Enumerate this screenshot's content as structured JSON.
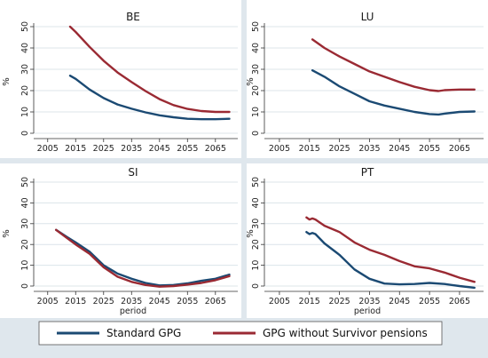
{
  "colors": {
    "background": "#dfe7ed",
    "plot_bg": "#ffffff",
    "standard": "#1b4a73",
    "without_survivor": "#9a2a33",
    "grid": "#dce4ea"
  },
  "legend": {
    "standard_label": "Standard GPG",
    "without_label": "GPG without Survivor pensions"
  },
  "chart_data": [
    {
      "type": "line",
      "title": "BE",
      "ylabel": "%",
      "xlabel": "",
      "xlim": [
        2000,
        2073
      ],
      "ylim": [
        0,
        50
      ],
      "xticks": [
        "2005",
        "2015",
        "2025",
        "2035",
        "2045",
        "2055",
        "2065"
      ],
      "yticks": [
        "0",
        "10",
        "20",
        "30",
        "40",
        "50"
      ],
      "grid": true,
      "series": [
        {
          "name": "Standard GPG",
          "x": [
            2013,
            2015,
            2020,
            2025,
            2030,
            2035,
            2040,
            2045,
            2050,
            2055,
            2060,
            2065,
            2070
          ],
          "values": [
            27,
            25.5,
            20.5,
            16.5,
            13.5,
            11.5,
            9.8,
            8.4,
            7.5,
            6.8,
            6.6,
            6.6,
            6.8
          ]
        },
        {
          "name": "GPG without Survivor pensions",
          "x": [
            2013,
            2015,
            2020,
            2025,
            2030,
            2035,
            2040,
            2045,
            2050,
            2055,
            2060,
            2065,
            2070
          ],
          "values": [
            50,
            47.5,
            40.5,
            34,
            28.5,
            24,
            19.8,
            16,
            13.2,
            11.4,
            10.4,
            10,
            10
          ]
        }
      ]
    },
    {
      "type": "line",
      "title": "LU",
      "ylabel": "%",
      "xlabel": "",
      "xlim": [
        2000,
        2073
      ],
      "ylim": [
        0,
        50
      ],
      "xticks": [
        "2005",
        "2015",
        "2025",
        "2035",
        "2045",
        "2055",
        "2065"
      ],
      "yticks": [
        "0",
        "10",
        "20",
        "30",
        "40",
        "50"
      ],
      "grid": true,
      "series": [
        {
          "name": "Standard GPG",
          "x": [
            2016,
            2020,
            2025,
            2030,
            2035,
            2040,
            2045,
            2050,
            2055,
            2058,
            2060,
            2065,
            2070
          ],
          "values": [
            29.5,
            26.5,
            22,
            18.5,
            15,
            13,
            11.5,
            10,
            9,
            8.8,
            9.2,
            10,
            10.2
          ]
        },
        {
          "name": "GPG without Survivor pensions",
          "x": [
            2016,
            2020,
            2025,
            2030,
            2035,
            2040,
            2045,
            2050,
            2055,
            2058,
            2060,
            2065,
            2070
          ],
          "values": [
            44,
            40,
            36,
            32.5,
            29,
            26.5,
            24,
            21.8,
            20.2,
            19.8,
            20.2,
            20.5,
            20.5
          ]
        }
      ]
    },
    {
      "type": "line",
      "title": "SI",
      "ylabel": "%",
      "xlabel": "period",
      "xlim": [
        2000,
        2073
      ],
      "ylim": [
        0,
        50
      ],
      "xticks": [
        "2005",
        "2015",
        "2025",
        "2035",
        "2045",
        "2055",
        "2065"
      ],
      "yticks": [
        "0",
        "10",
        "20",
        "30",
        "40",
        "50"
      ],
      "grid": true,
      "series": [
        {
          "name": "Standard GPG",
          "x": [
            2008,
            2012,
            2015,
            2020,
            2025,
            2030,
            2035,
            2040,
            2045,
            2050,
            2055,
            2060,
            2065,
            2070
          ],
          "values": [
            27,
            23.5,
            21,
            16.5,
            10,
            6,
            3.5,
            1.5,
            0.3,
            0.5,
            1.3,
            2.5,
            3.5,
            5.5
          ]
        },
        {
          "name": "GPG without Survivor pensions",
          "x": [
            2008,
            2012,
            2015,
            2020,
            2025,
            2030,
            2035,
            2040,
            2045,
            2050,
            2055,
            2060,
            2065,
            2070
          ],
          "values": [
            27,
            23,
            20,
            15.5,
            9,
            4.5,
            2,
            0.5,
            -0.3,
            0,
            0.7,
            1.5,
            2.8,
            4.8
          ]
        }
      ]
    },
    {
      "type": "line",
      "title": "PT",
      "ylabel": "%",
      "xlabel": "period",
      "xlim": [
        2000,
        2073
      ],
      "ylim": [
        0,
        50
      ],
      "xticks": [
        "2005",
        "2015",
        "2025",
        "2035",
        "2045",
        "2055",
        "2065"
      ],
      "yticks": [
        "0",
        "10",
        "20",
        "30",
        "40",
        "50"
      ],
      "grid": true,
      "series": [
        {
          "name": "Standard GPG",
          "x": [
            2014,
            2015,
            2016,
            2017,
            2020,
            2025,
            2030,
            2035,
            2040,
            2045,
            2050,
            2055,
            2060,
            2065,
            2070
          ],
          "values": [
            26,
            25,
            25.5,
            25,
            20.5,
            15,
            8,
            3.5,
            1.2,
            0.8,
            1,
            1.5,
            1,
            0,
            -0.8
          ]
        },
        {
          "name": "GPG without Survivor pensions",
          "x": [
            2014,
            2015,
            2016,
            2017,
            2020,
            2025,
            2030,
            2035,
            2040,
            2045,
            2050,
            2055,
            2060,
            2065,
            2070
          ],
          "values": [
            33,
            32,
            32.5,
            32,
            29,
            26,
            21,
            17.5,
            15,
            12,
            9.5,
            8.5,
            6.5,
            4,
            2
          ]
        }
      ]
    }
  ]
}
